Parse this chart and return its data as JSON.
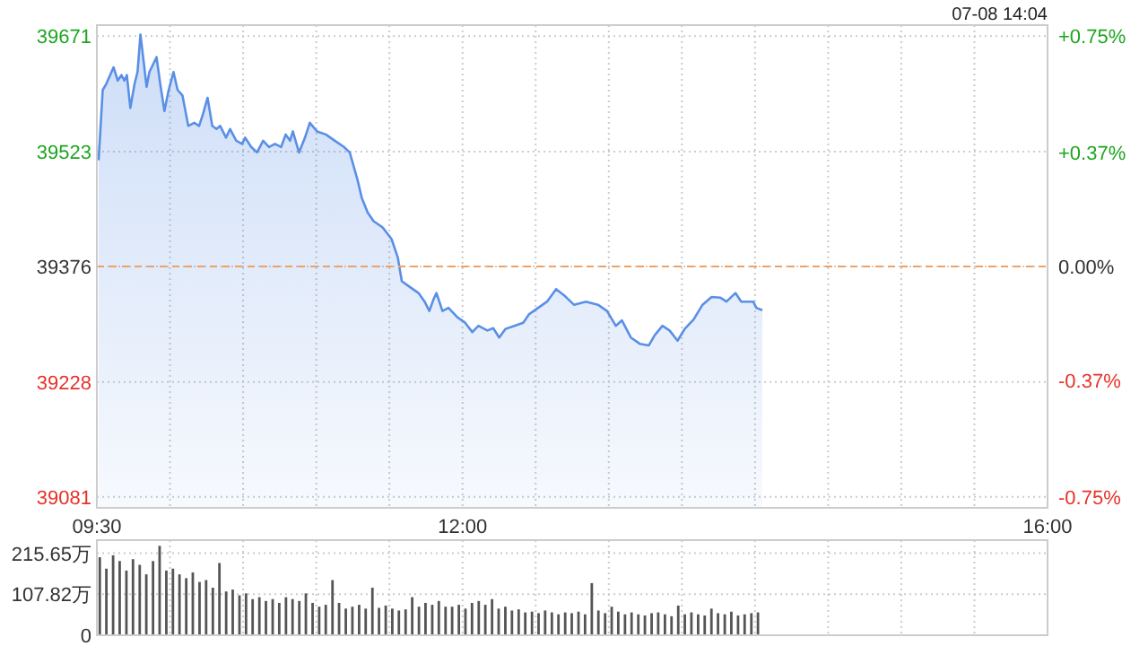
{
  "chart_data": [
    {
      "type": "area",
      "annotations": [
        "07-08 14:04"
      ],
      "x": [
        9.512,
        9.54,
        9.565,
        9.614,
        9.643,
        9.668,
        9.688,
        9.705,
        9.729,
        9.758,
        9.778,
        9.798,
        9.819,
        9.84,
        9.859,
        9.88,
        9.908,
        9.933,
        9.962,
        9.991,
        10.024,
        10.052,
        10.085,
        10.125,
        10.166,
        10.199,
        10.227,
        10.257,
        10.289,
        10.318,
        10.343,
        10.383,
        10.411,
        10.453,
        10.493,
        10.514,
        10.555,
        10.595,
        10.637,
        10.677,
        10.718,
        10.76,
        10.791,
        10.821,
        10.84,
        10.882,
        10.923,
        10.956,
        11.005,
        11.066,
        11.127,
        11.189,
        11.229,
        11.282,
        11.311,
        11.352,
        11.392,
        11.454,
        11.515,
        11.557,
        11.585,
        11.638,
        11.699,
        11.741,
        11.773,
        11.802,
        11.822,
        11.863,
        11.904,
        11.965,
        12.018,
        12.067,
        12.109,
        12.17,
        12.21,
        12.251,
        12.293,
        12.354,
        12.415,
        12.456,
        12.517,
        12.578,
        12.64,
        12.701,
        12.762,
        12.844,
        12.926,
        12.988,
        13.048,
        13.09,
        13.151,
        13.212,
        13.274,
        13.314,
        13.367,
        13.416,
        13.47,
        13.519,
        13.58,
        13.641,
        13.703,
        13.764,
        13.805,
        13.866,
        13.906,
        13.988,
        14.009,
        14.05
      ],
      "series": [
        {
          "color": "#5a8fe6",
          "values": [
            39512,
            39602,
            39610,
            39631,
            39614,
            39621,
            39614,
            39621,
            39579,
            39610,
            39625,
            39673,
            39640,
            39606,
            39625,
            39633,
            39644,
            39610,
            39575,
            39602,
            39625,
            39602,
            39595,
            39556,
            39560,
            39556,
            39572,
            39592,
            39556,
            39552,
            39556,
            39541,
            39552,
            39537,
            39533,
            39541,
            39529,
            39522,
            39537,
            39529,
            39533,
            39529,
            39545,
            39537,
            39549,
            39522,
            39541,
            39560,
            39549,
            39545,
            39537,
            39529,
            39522,
            39487,
            39464,
            39445,
            39434,
            39426,
            39411,
            39388,
            39357,
            39350,
            39342,
            39331,
            39319,
            39334,
            39342,
            39319,
            39323,
            39311,
            39304,
            39292,
            39300,
            39294,
            39297,
            39285,
            39296,
            39300,
            39304,
            39315,
            39323,
            39331,
            39347,
            39338,
            39327,
            39331,
            39327,
            39319,
            39300,
            39307,
            39285,
            39277,
            39275,
            39288,
            39300,
            39294,
            39281,
            39296,
            39308,
            39327,
            39337,
            39336,
            39331,
            39342,
            39331,
            39331,
            39323,
            39320
          ]
        }
      ],
      "xlim": [
        9.5,
        16
      ],
      "xticks": [
        {
          "value": 9.5,
          "label": "09:30"
        },
        {
          "value": 10,
          "label": null
        },
        {
          "value": 10.5,
          "label": null
        },
        {
          "value": 11,
          "label": null
        },
        {
          "value": 11.5,
          "label": null
        },
        {
          "value": 12,
          "label": "12:00"
        },
        {
          "value": 12.5,
          "label": null
        },
        {
          "value": 13,
          "label": null
        },
        {
          "value": 13.5,
          "label": null
        },
        {
          "value": 14,
          "label": null
        },
        {
          "value": 14.5,
          "label": null
        },
        {
          "value": 15,
          "label": null
        },
        {
          "value": 15.5,
          "label": null
        },
        {
          "value": 16,
          "label": "16:00"
        }
      ],
      "ylim": [
        39067,
        39685
      ],
      "yticks": [
        39081,
        39228,
        39376,
        39523,
        39671
      ],
      "y2lim": [
        -0.785,
        0.785
      ],
      "y2ticks": [
        {
          "value": -0.75,
          "label": "-0.75%"
        },
        {
          "value": -0.37,
          "label": "-0.37%"
        },
        {
          "value": 0,
          "label": "0.00%"
        },
        {
          "value": 0.37,
          "label": "+0.37%"
        },
        {
          "value": 0.75,
          "label": "+0.75%"
        }
      ],
      "ref_lines": [
        {
          "axis": "y",
          "value": 39376,
          "label": null,
          "color": "#f0a060",
          "line_style": "dashed"
        }
      ],
      "grid": true
    },
    {
      "type": "bar",
      "x": [
        9.52,
        9.565,
        9.611,
        9.656,
        9.702,
        9.747,
        9.793,
        9.838,
        9.884,
        9.929,
        9.975,
        10.02,
        10.065,
        10.111,
        10.156,
        10.202,
        10.247,
        10.293,
        10.338,
        10.384,
        10.429,
        10.475,
        10.52,
        10.565,
        10.611,
        10.656,
        10.702,
        10.747,
        10.793,
        10.838,
        10.884,
        10.929,
        10.975,
        11.02,
        11.065,
        11.111,
        11.156,
        11.202,
        11.247,
        11.293,
        11.338,
        11.384,
        11.429,
        11.475,
        11.52,
        11.565,
        11.611,
        11.656,
        11.702,
        11.747,
        11.793,
        11.838,
        11.884,
        11.929,
        11.975,
        12.02,
        12.065,
        12.111,
        12.156,
        12.202,
        12.247,
        12.293,
        12.338,
        12.384,
        12.429,
        12.475,
        12.52,
        12.565,
        12.611,
        12.656,
        12.702,
        12.747,
        12.793,
        12.838,
        12.884,
        12.929,
        12.975,
        13.02,
        13.065,
        13.111,
        13.156,
        13.202,
        13.247,
        13.293,
        13.338,
        13.384,
        13.429,
        13.475,
        13.52,
        13.565,
        13.611,
        13.656,
        13.702,
        13.747,
        13.793,
        13.838,
        13.884,
        13.929,
        13.975,
        14.02
      ],
      "series": [
        {
          "color": "#555555",
          "values": [
            205,
            175,
            210,
            195,
            170,
            200,
            185,
            160,
            195,
            235,
            170,
            175,
            160,
            150,
            165,
            140,
            145,
            125,
            190,
            115,
            120,
            105,
            110,
            95,
            100,
            90,
            95,
            85,
            100,
            95,
            90,
            110,
            85,
            75,
            80,
            145,
            85,
            70,
            75,
            80,
            70,
            125,
            72,
            78,
            70,
            65,
            68,
            100,
            75,
            85,
            80,
            90,
            75,
            75,
            80,
            70,
            85,
            90,
            80,
            95,
            70,
            75,
            65,
            68,
            60,
            62,
            58,
            65,
            60,
            55,
            60,
            58,
            62,
            55,
            137,
            65,
            58,
            75,
            62,
            55,
            60,
            55,
            52,
            58,
            60,
            55,
            50,
            78,
            55,
            60,
            55,
            52,
            70,
            58,
            55,
            62,
            52,
            55,
            58,
            60
          ]
        }
      ],
      "xlim": [
        9.5,
        16
      ],
      "xticks": [
        {
          "value": 9.5,
          "label": null
        },
        {
          "value": 10,
          "label": null
        },
        {
          "value": 10.5,
          "label": null
        },
        {
          "value": 11,
          "label": null
        },
        {
          "value": 11.5,
          "label": null
        },
        {
          "value": 12,
          "label": null
        },
        {
          "value": 12.5,
          "label": null
        },
        {
          "value": 13,
          "label": null
        },
        {
          "value": 13.5,
          "label": null
        },
        {
          "value": 14,
          "label": null
        },
        {
          "value": 14.5,
          "label": null
        },
        {
          "value": 15,
          "label": null
        },
        {
          "value": 15.5,
          "label": null
        },
        {
          "value": 16,
          "label": null
        }
      ],
      "ylim": [
        0,
        250
      ],
      "yticks": [
        0,
        {
          "value": 107.82,
          "label": "107.82万"
        },
        {
          "value": 215.65,
          "label": "215.65万"
        }
      ],
      "tick_labels": "y",
      "grid": true
    }
  ]
}
